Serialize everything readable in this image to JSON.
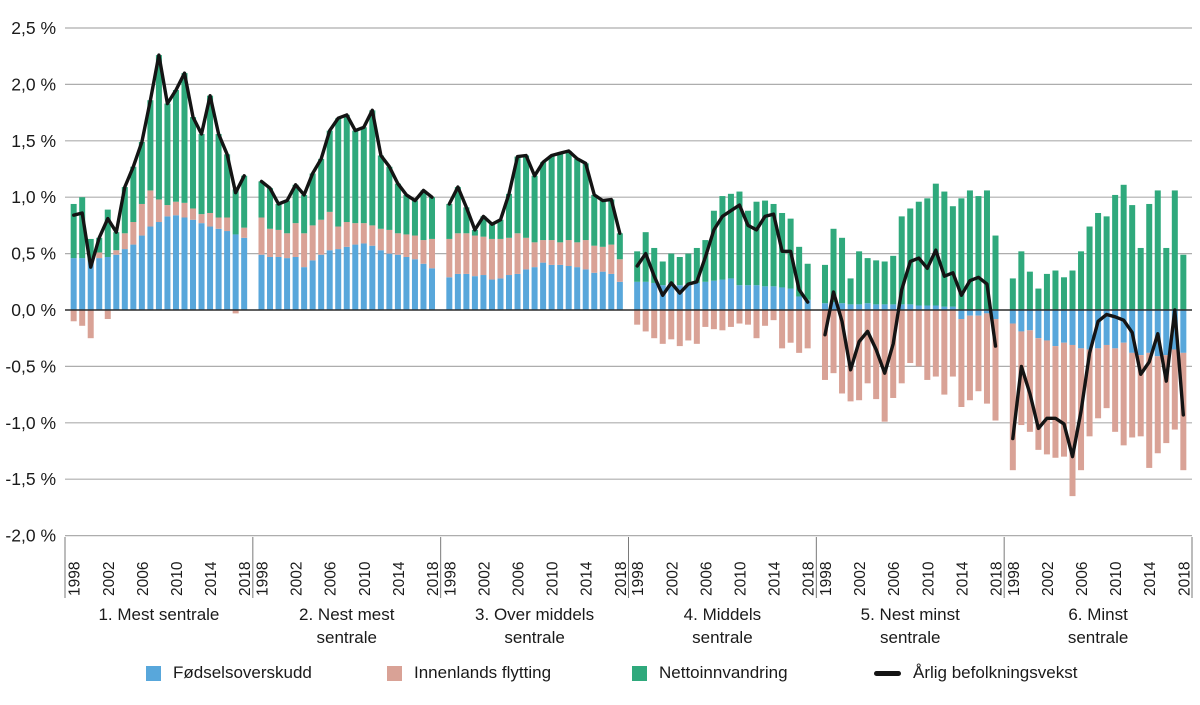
{
  "colors": {
    "births": "#58A7DB",
    "domestic": "#D9A296",
    "immigration": "#2FA97C",
    "growth_line": "#141414",
    "gridline": "#ADADAD",
    "zero_line": "#2b2b2b",
    "separator": "#7a7a7a",
    "text": "#1a1a1a"
  },
  "y_axis": {
    "values": [
      2.5,
      2.0,
      1.5,
      1.0,
      0.5,
      0.0,
      -0.5,
      -1.0,
      -1.5,
      -2.0
    ],
    "labels": [
      "2,5 %",
      "2,0 %",
      "1,5 %",
      "1,0 %",
      "0,5 %",
      "0,0 %",
      "-0,5 %",
      "-1,0 %",
      "-1,5 %",
      "-2,0 %"
    ]
  },
  "legend": {
    "items": [
      {
        "label": "Fødselsoverskudd",
        "swatch": "births"
      },
      {
        "label": "Innenlands flytting",
        "swatch": "domestic"
      },
      {
        "label": "Nettoinnvandring",
        "swatch": "immigration"
      },
      {
        "label": "Årlig befolkningsvekst",
        "swatch": "growth_line"
      }
    ]
  },
  "chart_data": {
    "type": "bar",
    "stacked": true,
    "overlay_line": true,
    "years": [
      1998,
      1999,
      2000,
      2001,
      2002,
      2003,
      2004,
      2005,
      2006,
      2007,
      2008,
      2009,
      2010,
      2011,
      2012,
      2013,
      2014,
      2015,
      2016,
      2017,
      2018
    ],
    "x_tick_years": [
      "1998",
      "2002",
      "2006",
      "2010",
      "2014",
      "2018"
    ],
    "x_tick_indices": [
      0,
      4,
      8,
      12,
      16,
      20
    ],
    "ylim": [
      -2.0,
      2.5
    ],
    "unit": "%",
    "series_names": [
      "Fødselsoverskudd",
      "Innenlands flytting",
      "Nettoinnvandring"
    ],
    "line_name": "Årlig befolkningsvekst",
    "groups": [
      {
        "label_lines": [
          "1. Mest sentrale"
        ],
        "fodselsoverskudd": [
          0.46,
          0.46,
          0.43,
          0.46,
          0.47,
          0.49,
          0.54,
          0.58,
          0.66,
          0.74,
          0.78,
          0.83,
          0.84,
          0.82,
          0.8,
          0.77,
          0.74,
          0.72,
          0.7,
          0.67,
          0.64
        ],
        "innenlands_flytting": [
          -0.1,
          -0.14,
          -0.25,
          0.05,
          -0.08,
          0.04,
          0.14,
          0.2,
          0.28,
          0.32,
          0.2,
          0.1,
          0.12,
          0.13,
          0.1,
          0.08,
          0.12,
          0.1,
          0.12,
          -0.03,
          0.09
        ],
        "nettoinnvandring": [
          0.48,
          0.54,
          0.2,
          0.13,
          0.42,
          0.16,
          0.41,
          0.49,
          0.55,
          0.8,
          1.28,
          0.9,
          0.99,
          1.15,
          0.81,
          0.71,
          1.04,
          0.74,
          0.56,
          0.4,
          0.46
        ],
        "befolkningsvekst": [
          0.84,
          0.86,
          0.38,
          0.64,
          0.81,
          0.69,
          1.09,
          1.27,
          1.49,
          1.86,
          2.26,
          1.83,
          1.95,
          2.1,
          1.71,
          1.56,
          1.9,
          1.56,
          1.38,
          1.04,
          1.19
        ]
      },
      {
        "label_lines": [
          "2. Nest mest",
          "sentrale"
        ],
        "fodselsoverskudd": [
          0.49,
          0.47,
          0.47,
          0.46,
          0.47,
          0.38,
          0.44,
          0.49,
          0.53,
          0.54,
          0.56,
          0.58,
          0.59,
          0.57,
          0.53,
          0.5,
          0.49,
          0.47,
          0.45,
          0.41,
          0.37
        ],
        "innenlands_flytting": [
          0.33,
          0.25,
          0.24,
          0.22,
          0.3,
          0.3,
          0.31,
          0.31,
          0.34,
          0.2,
          0.22,
          0.19,
          0.18,
          0.18,
          0.19,
          0.21,
          0.19,
          0.2,
          0.21,
          0.21,
          0.26
        ],
        "nettoinnvandring": [
          0.32,
          0.36,
          0.23,
          0.29,
          0.34,
          0.34,
          0.46,
          0.54,
          0.72,
          0.96,
          0.95,
          0.82,
          0.85,
          1.02,
          0.65,
          0.56,
          0.44,
          0.35,
          0.31,
          0.44,
          0.37
        ],
        "befolkningsvekst": [
          1.14,
          1.08,
          0.94,
          0.97,
          1.11,
          1.02,
          1.21,
          1.34,
          1.59,
          1.7,
          1.73,
          1.59,
          1.62,
          1.77,
          1.37,
          1.27,
          1.12,
          1.02,
          0.97,
          1.06,
          1.0
        ]
      },
      {
        "label_lines": [
          "3. Over middels",
          "sentrale"
        ],
        "fodselsoverskudd": [
          0.29,
          0.32,
          0.32,
          0.3,
          0.31,
          0.27,
          0.28,
          0.31,
          0.32,
          0.36,
          0.38,
          0.42,
          0.4,
          0.4,
          0.39,
          0.38,
          0.36,
          0.33,
          0.34,
          0.32,
          0.25
        ],
        "innenlands_flytting": [
          0.34,
          0.36,
          0.36,
          0.36,
          0.34,
          0.36,
          0.35,
          0.33,
          0.36,
          0.28,
          0.22,
          0.2,
          0.22,
          0.2,
          0.23,
          0.22,
          0.26,
          0.24,
          0.22,
          0.26,
          0.2
        ],
        "nettoinnvandring": [
          0.31,
          0.41,
          0.23,
          0.05,
          0.18,
          0.13,
          0.17,
          0.39,
          0.68,
          0.73,
          0.59,
          0.69,
          0.75,
          0.79,
          0.79,
          0.74,
          0.68,
          0.45,
          0.41,
          0.4,
          0.23
        ],
        "befolkningsvekst": [
          0.94,
          1.09,
          0.91,
          0.71,
          0.83,
          0.76,
          0.8,
          1.03,
          1.36,
          1.37,
          1.19,
          1.31,
          1.37,
          1.39,
          1.41,
          1.34,
          1.3,
          1.02,
          0.97,
          0.98,
          0.68
        ]
      },
      {
        "label_lines": [
          "4. Middels",
          "sentrale"
        ],
        "fodselsoverskudd": [
          0.25,
          0.25,
          0.24,
          0.22,
          0.24,
          0.22,
          0.23,
          0.24,
          0.25,
          0.26,
          0.27,
          0.28,
          0.22,
          0.22,
          0.22,
          0.21,
          0.21,
          0.2,
          0.19,
          0.12,
          0.09
        ],
        "innenlands_flytting": [
          -0.13,
          -0.19,
          -0.25,
          -0.3,
          -0.26,
          -0.32,
          -0.27,
          -0.3,
          -0.15,
          -0.17,
          -0.18,
          -0.15,
          -0.12,
          -0.13,
          -0.25,
          -0.14,
          -0.09,
          -0.34,
          -0.29,
          -0.38,
          -0.34
        ],
        "nettoinnvandring": [
          0.27,
          0.44,
          0.31,
          0.21,
          0.26,
          0.25,
          0.27,
          0.31,
          0.37,
          0.62,
          0.74,
          0.75,
          0.83,
          0.66,
          0.74,
          0.76,
          0.73,
          0.66,
          0.62,
          0.44,
          0.32
        ],
        "befolkningsvekst": [
          0.39,
          0.5,
          0.3,
          0.13,
          0.24,
          0.15,
          0.23,
          0.25,
          0.47,
          0.71,
          0.83,
          0.88,
          0.93,
          0.75,
          0.71,
          0.83,
          0.85,
          0.52,
          0.52,
          0.18,
          0.07
        ]
      },
      {
        "label_lines": [
          "5. Nest minst",
          "sentrale"
        ],
        "fodselsoverskudd": [
          0.06,
          0.07,
          0.06,
          0.05,
          0.05,
          0.06,
          0.05,
          0.05,
          0.05,
          0.05,
          0.05,
          0.04,
          0.04,
          0.04,
          0.03,
          0.03,
          -0.08,
          -0.05,
          -0.05,
          -0.03,
          -0.08
        ],
        "innenlands_flytting": [
          -0.62,
          -0.56,
          -0.74,
          -0.81,
          -0.8,
          -0.65,
          -0.79,
          -0.99,
          -0.78,
          -0.65,
          -0.47,
          -0.5,
          -0.62,
          -0.59,
          -0.75,
          -0.59,
          -0.78,
          -0.75,
          -0.67,
          -0.8,
          -0.9
        ],
        "nettoinnvandring": [
          0.34,
          0.65,
          0.58,
          0.23,
          0.47,
          0.4,
          0.39,
          0.38,
          0.43,
          0.78,
          0.85,
          0.92,
          0.95,
          1.08,
          1.02,
          0.89,
          0.99,
          1.06,
          1.01,
          1.06,
          0.66
        ],
        "befolkningsvekst": [
          -0.22,
          0.16,
          -0.1,
          -0.53,
          -0.28,
          -0.19,
          -0.35,
          -0.56,
          -0.3,
          0.18,
          0.43,
          0.46,
          0.37,
          0.53,
          0.3,
          0.33,
          0.13,
          0.26,
          0.29,
          0.23,
          -0.32
        ]
      },
      {
        "label_lines": [
          "6. Minst",
          "sentrale"
        ],
        "fodselsoverskudd": [
          -0.12,
          -0.19,
          -0.18,
          -0.25,
          -0.27,
          -0.32,
          -0.29,
          -0.31,
          -0.34,
          -0.35,
          -0.34,
          -0.31,
          -0.34,
          -0.29,
          -0.38,
          -0.4,
          -0.38,
          -0.41,
          -0.4,
          -0.35,
          -0.38
        ],
        "innenlands_flytting": [
          -1.3,
          -0.83,
          -0.9,
          -0.99,
          -1.01,
          -0.99,
          -1.01,
          -1.34,
          -1.08,
          -0.77,
          -0.62,
          -0.56,
          -0.74,
          -0.91,
          -0.75,
          -0.72,
          -1.02,
          -0.86,
          -0.78,
          -0.71,
          -1.04
        ],
        "nettoinnvandring": [
          0.28,
          0.52,
          0.34,
          0.19,
          0.32,
          0.35,
          0.29,
          0.35,
          0.52,
          0.74,
          0.86,
          0.83,
          1.02,
          1.11,
          0.93,
          0.55,
          0.94,
          1.06,
          0.55,
          1.06,
          0.49
        ],
        "befolkningsvekst": [
          -1.14,
          -0.5,
          -0.74,
          -1.05,
          -0.96,
          -0.96,
          -1.01,
          -1.3,
          -0.9,
          -0.38,
          -0.1,
          -0.04,
          -0.06,
          -0.09,
          -0.2,
          -0.57,
          -0.46,
          -0.21,
          -0.63,
          0.0,
          -0.93
        ]
      }
    ]
  }
}
